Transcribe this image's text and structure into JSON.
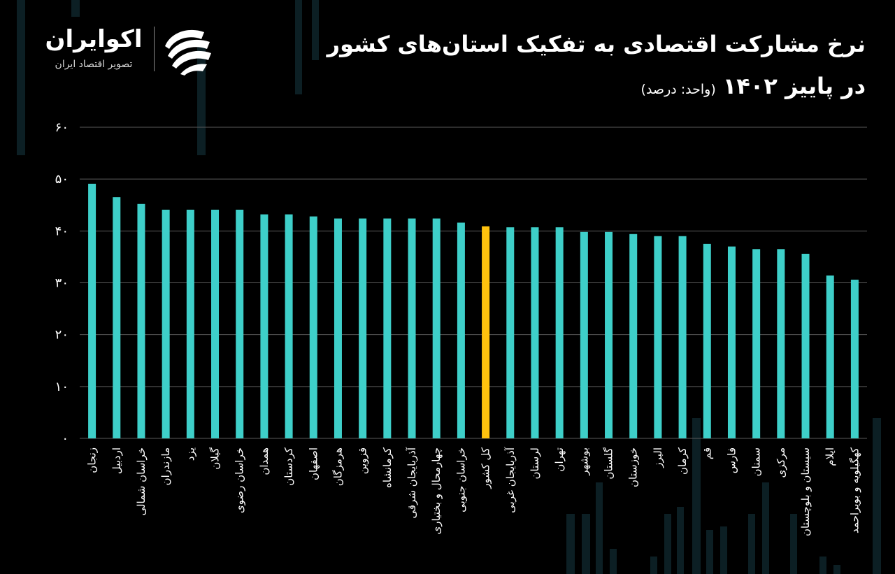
{
  "header": {
    "title_line1": "نرخ مشارکت اقتصادی به تفکیک استان‌های کشور",
    "title_line2": "در پاییز ۱۴۰۲",
    "unit": "(واحد: درصد)"
  },
  "brand": {
    "name": "اکوایران",
    "subtitle": "تصویر اقتصاد ایران",
    "logo_icon": "ecoiran-logo-icon"
  },
  "colors": {
    "bar": "#3ecfc9",
    "highlight": "#ffc20e",
    "background": "#000000",
    "grid": "#5a5a5a",
    "text": "#ffffff"
  },
  "chart_data": {
    "type": "bar",
    "title": "نرخ مشارکت اقتصادی به تفکیک استان‌های کشور در پاییز ۱۴۰۲",
    "xlabel": "",
    "ylabel": "",
    "ylim": [
      0,
      60
    ],
    "yticks": [
      0,
      10,
      20,
      30,
      40,
      50,
      60
    ],
    "ytick_labels": [
      "۰",
      "۱۰",
      "۲۰",
      "۳۰",
      "۴۰",
      "۵۰",
      "۶۰"
    ],
    "grid": true,
    "legend": "none",
    "highlight_category": "کل کشور",
    "categories": [
      "زنجان",
      "اردبیل",
      "خراسان شمالی",
      "مازندران",
      "یزد",
      "گیلان",
      "خراسان رضوی",
      "همدان",
      "کردستان",
      "اصفهان",
      "هرمزگان",
      "قزوین",
      "کرمانشاه",
      "آذربایجان شرقی",
      "چهارمحال و بختیاری",
      "خراسان جنوبی",
      "کل کشور",
      "آذربایجان غربی",
      "لرستان",
      "تهران",
      "بوشهر",
      "گلستان",
      "خوزستان",
      "البرز",
      "کرمان",
      "قم",
      "فارس",
      "سمنان",
      "مرکزی",
      "سیستان و بلوچستان",
      "ایلام",
      "کهگیلویه و بویراحمد"
    ],
    "values": [
      49.1,
      46.5,
      45.2,
      44.1,
      44.1,
      44.1,
      44.1,
      43.2,
      43.2,
      42.8,
      42.4,
      42.4,
      42.4,
      42.4,
      42.4,
      41.6,
      40.9,
      40.7,
      40.7,
      40.7,
      39.8,
      39.8,
      39.4,
      39.0,
      39.0,
      37.5,
      37.0,
      36.5,
      36.5,
      35.6,
      31.4,
      30.6
    ]
  }
}
